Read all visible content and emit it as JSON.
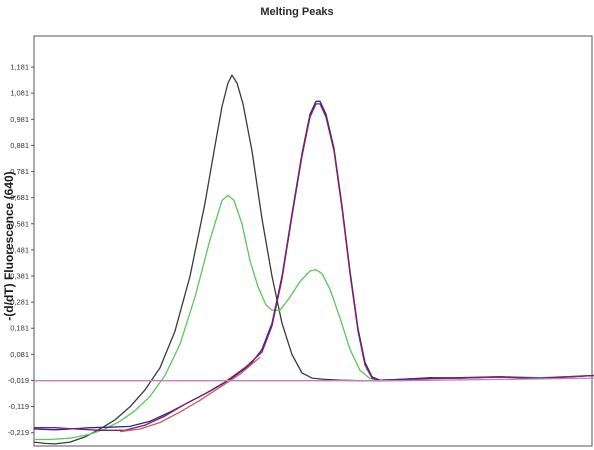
{
  "chart_data": {
    "type": "line",
    "title": "Melting Peaks",
    "xlabel": "",
    "ylabel": "-(d/dT) Fluorescence (640)",
    "ylim": [
      -0.27,
      1.3
    ],
    "yticks": [
      {
        "v": 1.181,
        "label": "1,181"
      },
      {
        "v": 1.081,
        "label": "1,081"
      },
      {
        "v": 0.981,
        "label": "0,981"
      },
      {
        "v": 0.881,
        "label": "0,881"
      },
      {
        "v": 0.781,
        "label": "0,781"
      },
      {
        "v": 0.681,
        "label": "0,681"
      },
      {
        "v": 0.581,
        "label": "0,581"
      },
      {
        "v": 0.481,
        "label": "0,481"
      },
      {
        "v": 0.381,
        "label": "0,381"
      },
      {
        "v": 0.281,
        "label": "0,281"
      },
      {
        "v": 0.181,
        "label": "0,181"
      },
      {
        "v": 0.081,
        "label": "0,081"
      },
      {
        "v": -0.019,
        "label": "-0,019"
      },
      {
        "v": -0.119,
        "label": "-0,119"
      },
      {
        "v": -0.219,
        "label": "-0,219"
      }
    ],
    "grid": false,
    "legend": "none",
    "series": [
      {
        "color": "#3a3a3a",
        "values": [
          [
            34,
            -0.255
          ],
          [
            45,
            -0.26
          ],
          [
            55,
            -0.262
          ],
          [
            70,
            -0.255
          ],
          [
            85,
            -0.235
          ],
          [
            100,
            -0.205
          ],
          [
            115,
            -0.17
          ],
          [
            130,
            -0.12
          ],
          [
            145,
            -0.055
          ],
          [
            160,
            0.03
          ],
          [
            175,
            0.17
          ],
          [
            190,
            0.38
          ],
          [
            205,
            0.66
          ],
          [
            215,
            0.88
          ],
          [
            222,
            1.03
          ],
          [
            228,
            1.12
          ],
          [
            232,
            1.15
          ],
          [
            237,
            1.12
          ],
          [
            243,
            1.04
          ],
          [
            252,
            0.86
          ],
          [
            262,
            0.6
          ],
          [
            272,
            0.38
          ],
          [
            282,
            0.2
          ],
          [
            292,
            0.08
          ],
          [
            302,
            0.01
          ],
          [
            312,
            -0.01
          ],
          [
            325,
            -0.015
          ],
          [
            340,
            -0.018
          ],
          [
            360,
            -0.02
          ],
          [
            380,
            -0.02
          ],
          [
            400,
            -0.015
          ],
          [
            430,
            -0.008
          ],
          [
            460,
            -0.01
          ],
          [
            500,
            -0.005
          ],
          [
            540,
            -0.01
          ],
          [
            594,
            0.0
          ]
        ]
      },
      {
        "color": "#5ac85a",
        "values": [
          [
            34,
            -0.245
          ],
          [
            50,
            -0.245
          ],
          [
            70,
            -0.24
          ],
          [
            90,
            -0.225
          ],
          [
            105,
            -0.205
          ],
          [
            120,
            -0.175
          ],
          [
            135,
            -0.135
          ],
          [
            150,
            -0.08
          ],
          [
            165,
            0.0
          ],
          [
            180,
            0.12
          ],
          [
            195,
            0.3
          ],
          [
            210,
            0.52
          ],
          [
            222,
            0.67
          ],
          [
            228,
            0.69
          ],
          [
            234,
            0.67
          ],
          [
            242,
            0.58
          ],
          [
            250,
            0.44
          ],
          [
            258,
            0.34
          ],
          [
            266,
            0.27
          ],
          [
            272,
            0.25
          ],
          [
            280,
            0.25
          ],
          [
            290,
            0.3
          ],
          [
            300,
            0.36
          ],
          [
            310,
            0.4
          ],
          [
            316,
            0.405
          ],
          [
            322,
            0.39
          ],
          [
            330,
            0.33
          ],
          [
            340,
            0.22
          ],
          [
            350,
            0.1
          ],
          [
            360,
            0.02
          ],
          [
            370,
            -0.012
          ],
          [
            380,
            -0.018
          ],
          [
            400,
            -0.015
          ],
          [
            430,
            -0.01
          ],
          [
            460,
            -0.01
          ],
          [
            500,
            -0.005
          ],
          [
            540,
            -0.008
          ],
          [
            594,
            0.0
          ]
        ]
      },
      {
        "color": "#2a2a8a",
        "values": [
          [
            34,
            -0.205
          ],
          [
            55,
            -0.208
          ],
          [
            70,
            -0.205
          ],
          [
            90,
            -0.2
          ],
          [
            110,
            -0.198
          ],
          [
            130,
            -0.195
          ],
          [
            150,
            -0.175
          ],
          [
            170,
            -0.14
          ],
          [
            190,
            -0.1
          ],
          [
            210,
            -0.06
          ],
          [
            230,
            -0.015
          ],
          [
            250,
            0.04
          ],
          [
            262,
            0.1
          ],
          [
            272,
            0.2
          ],
          [
            282,
            0.38
          ],
          [
            292,
            0.62
          ],
          [
            302,
            0.85
          ],
          [
            310,
            1.0
          ],
          [
            316,
            1.05
          ],
          [
            320,
            1.05
          ],
          [
            326,
            1.0
          ],
          [
            334,
            0.87
          ],
          [
            342,
            0.65
          ],
          [
            350,
            0.4
          ],
          [
            358,
            0.18
          ],
          [
            365,
            0.05
          ],
          [
            372,
            -0.005
          ],
          [
            380,
            -0.018
          ],
          [
            400,
            -0.015
          ],
          [
            430,
            -0.01
          ],
          [
            460,
            -0.008
          ],
          [
            500,
            -0.005
          ],
          [
            540,
            -0.01
          ],
          [
            594,
            0.0
          ]
        ]
      },
      {
        "color": "#8a1a6a",
        "values": [
          [
            34,
            -0.2
          ],
          [
            55,
            -0.2
          ],
          [
            75,
            -0.205
          ],
          [
            100,
            -0.21
          ],
          [
            125,
            -0.21
          ],
          [
            145,
            -0.19
          ],
          [
            165,
            -0.155
          ],
          [
            185,
            -0.11
          ],
          [
            205,
            -0.07
          ],
          [
            225,
            -0.025
          ],
          [
            245,
            0.03
          ],
          [
            262,
            0.09
          ],
          [
            272,
            0.19
          ],
          [
            282,
            0.37
          ],
          [
            292,
            0.61
          ],
          [
            302,
            0.84
          ],
          [
            310,
            0.99
          ],
          [
            316,
            1.04
          ],
          [
            320,
            1.04
          ],
          [
            326,
            0.99
          ],
          [
            334,
            0.86
          ],
          [
            342,
            0.64
          ],
          [
            350,
            0.39
          ],
          [
            358,
            0.17
          ],
          [
            365,
            0.04
          ],
          [
            372,
            -0.01
          ],
          [
            380,
            -0.02
          ],
          [
            400,
            -0.018
          ],
          [
            430,
            -0.012
          ],
          [
            460,
            -0.01
          ],
          [
            500,
            -0.006
          ],
          [
            540,
            -0.012
          ],
          [
            594,
            0.0
          ]
        ]
      },
      {
        "color": "#c06060",
        "values": [
          [
            120,
            -0.215
          ],
          [
            140,
            -0.205
          ],
          [
            160,
            -0.18
          ],
          [
            180,
            -0.14
          ],
          [
            200,
            -0.095
          ],
          [
            220,
            -0.045
          ],
          [
            240,
            0.005
          ],
          [
            260,
            0.07
          ]
        ]
      },
      {
        "color": "#c080c0",
        "values": [
          [
            34,
            -0.02
          ],
          [
            100,
            -0.02
          ],
          [
            200,
            -0.02
          ],
          [
            300,
            -0.02
          ],
          [
            400,
            -0.02
          ],
          [
            500,
            -0.015
          ],
          [
            594,
            -0.01
          ]
        ]
      }
    ]
  }
}
